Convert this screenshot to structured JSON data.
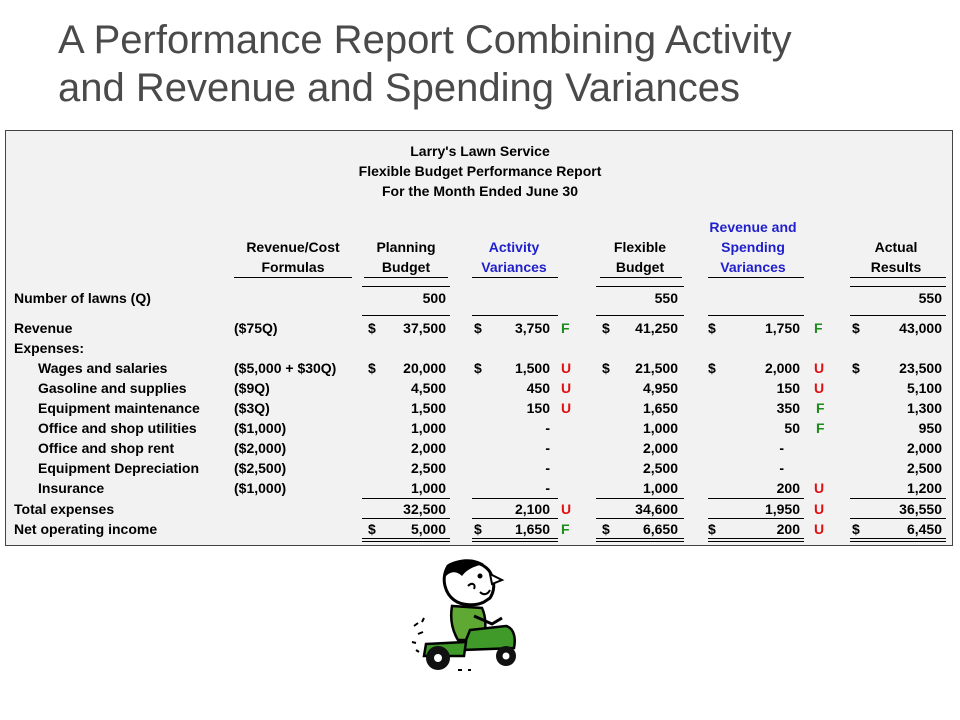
{
  "slide": {
    "title_line1": "A Performance Report Combining Activity",
    "title_line2": "and Revenue and Spending Variances"
  },
  "report": {
    "company": "Larry's Lawn Service",
    "report_name": "Flexible Budget Performance Report",
    "period": "For the Month Ended June 30",
    "headers": {
      "formulas": [
        "Revenue/Cost",
        "Formulas"
      ],
      "planning": [
        "Planning",
        "Budget"
      ],
      "activity": [
        "Activity",
        "Variances"
      ],
      "flexible": [
        "Flexible",
        "Budget"
      ],
      "revspend": [
        "Revenue and",
        "Spending",
        "Variances"
      ],
      "actual": [
        "Actual",
        "Results"
      ]
    },
    "lawns": {
      "label": "Number of lawns (Q)",
      "planning": "500",
      "flexible": "550",
      "actual": "550"
    },
    "dollar_sign": "$",
    "revenue": {
      "label": "Revenue",
      "formula": "($75Q)",
      "planning": "37,500",
      "activity": "3,750",
      "activity_flag": "F",
      "flexible": "41,250",
      "revspend": "1,750",
      "revspend_flag": "F",
      "actual": "43,000"
    },
    "expenses_label": "Expenses:",
    "expenses": [
      {
        "label": "Wages and salaries",
        "formula": "($5,000 + $30Q)",
        "planning": "20,000",
        "activity": "1,500",
        "activity_flag": "U",
        "flexible": "21,500",
        "revspend": "2,000",
        "revspend_flag": "U",
        "actual": "23,500"
      },
      {
        "label": "Gasoline and supplies",
        "formula": "($9Q)",
        "planning": "4,500",
        "activity": "450",
        "activity_flag": "U",
        "flexible": "4,950",
        "revspend": "150",
        "revspend_flag": "U",
        "actual": "5,100"
      },
      {
        "label": "Equipment maintenance",
        "formula": "($3Q)",
        "planning": "1,500",
        "activity": "150",
        "activity_flag": "U",
        "flexible": "1,650",
        "revspend": "350",
        "revspend_flag": "F",
        "actual": "1,300"
      },
      {
        "label": "Office and shop utilities",
        "formula": "($1,000)",
        "planning": "1,000",
        "activity": "-",
        "activity_flag": "",
        "flexible": "1,000",
        "revspend": "50",
        "revspend_flag": "F",
        "actual": "950"
      },
      {
        "label": "Office and shop rent",
        "formula": "($2,000)",
        "planning": "2,000",
        "activity": "-",
        "activity_flag": "",
        "flexible": "2,000",
        "revspend": "-",
        "revspend_flag": "",
        "actual": "2,000"
      },
      {
        "label": "Equipment Depreciation",
        "formula": "($2,500)",
        "planning": "2,500",
        "activity": "-",
        "activity_flag": "",
        "flexible": "2,500",
        "revspend": "-",
        "revspend_flag": "",
        "actual": "2,500"
      },
      {
        "label": "Insurance",
        "formula": "($1,000)",
        "planning": "1,000",
        "activity": "-",
        "activity_flag": "",
        "flexible": "1,000",
        "revspend": "200",
        "revspend_flag": "U",
        "actual": "1,200"
      }
    ],
    "total": {
      "label": "Total expenses",
      "planning": "32,500",
      "activity": "2,100",
      "activity_flag": "U",
      "flexible": "34,600",
      "revspend": "1,950",
      "revspend_flag": "U",
      "actual": "36,550"
    },
    "noi": {
      "label": "Net operating income",
      "planning": "5,000",
      "activity": "1,650",
      "activity_flag": "F",
      "flexible": "6,650",
      "revspend": "200",
      "revspend_flag": "U",
      "actual": "6,450"
    }
  },
  "colors": {
    "favorable": "#1a8c1a",
    "unfavorable": "#e01010",
    "variance_header": "#1f1fcc"
  },
  "illustration": {
    "icon": "man-on-riding-mower-icon"
  }
}
